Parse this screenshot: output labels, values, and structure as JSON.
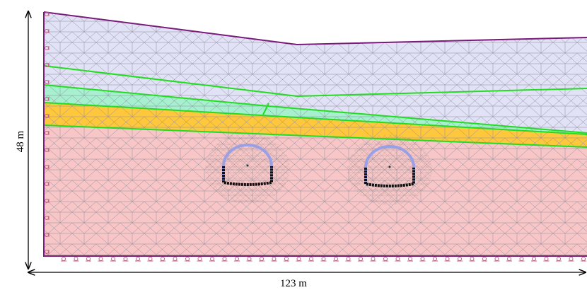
{
  "dimensions": {
    "height": "48 m",
    "width": "123 m"
  }
}
